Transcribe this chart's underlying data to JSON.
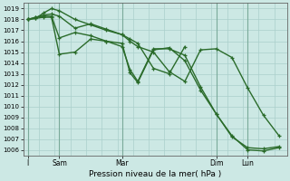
{
  "title": "Pression niveau de la mer( hPa )",
  "ylabel_ticks": [
    1006,
    1007,
    1008,
    1009,
    1010,
    1011,
    1012,
    1013,
    1014,
    1015,
    1016,
    1017,
    1018,
    1019
  ],
  "ylim": [
    1005.5,
    1019.5
  ],
  "xlim": [
    -0.3,
    16.5
  ],
  "background_color": "#cce8e4",
  "grid_color": "#aacfcb",
  "line_color": "#2a6b2a",
  "linewidth": 1.0,
  "markersize": 3.5,
  "xtick_positions": [
    0,
    2,
    6,
    12,
    14
  ],
  "xtick_labels": [
    "I",
    "Sam",
    "Mar",
    "Dim",
    "Lun"
  ],
  "vline_positions": [
    0,
    2,
    6,
    12,
    14
  ],
  "series": [
    {
      "x": [
        0,
        0.5,
        1,
        1.5,
        2,
        3,
        4,
        5,
        6,
        6.5,
        7,
        8,
        9,
        10,
        11,
        12,
        13,
        14,
        15,
        16
      ],
      "y": [
        1018.0,
        1018.2,
        1018.4,
        1018.5,
        1018.3,
        1017.2,
        1017.6,
        1017.1,
        1016.6,
        1016.0,
        1015.5,
        1015.0,
        1013.2,
        1012.3,
        1015.2,
        1015.3,
        1014.5,
        1011.7,
        1009.2,
        1007.3
      ]
    },
    {
      "x": [
        0,
        0.5,
        1,
        1.5,
        2,
        3,
        4,
        5,
        6,
        6.5,
        7,
        8,
        9,
        10
      ],
      "y": [
        1018.0,
        1018.1,
        1018.6,
        1019.0,
        1018.8,
        1018.0,
        1017.5,
        1017.0,
        1016.6,
        1016.2,
        1015.8,
        1013.5,
        1013.0,
        1015.5
      ]
    },
    {
      "x": [
        0,
        0.5,
        1,
        1.5,
        2,
        3,
        4,
        5,
        6,
        6.5,
        7,
        8,
        9,
        10,
        11,
        12,
        13,
        14,
        15,
        16
      ],
      "y": [
        1018.0,
        1018.2,
        1018.3,
        1018.3,
        1016.3,
        1016.8,
        1016.5,
        1016.0,
        1015.5,
        1013.4,
        1012.3,
        1015.3,
        1015.3,
        1014.7,
        1011.8,
        1009.3,
        1007.2,
        1006.2,
        1006.1,
        1006.3
      ]
    },
    {
      "x": [
        0,
        0.5,
        1,
        1.5,
        2,
        3,
        4,
        5,
        6,
        6.5,
        7,
        8,
        9,
        10,
        11,
        12,
        13,
        14,
        15,
        16
      ],
      "y": [
        1018.0,
        1018.1,
        1018.2,
        1018.2,
        1014.8,
        1015.0,
        1016.2,
        1016.0,
        1015.8,
        1013.1,
        1012.2,
        1015.2,
        1015.4,
        1014.2,
        1011.5,
        1009.3,
        1007.3,
        1006.0,
        1005.9,
        1006.2
      ]
    }
  ]
}
